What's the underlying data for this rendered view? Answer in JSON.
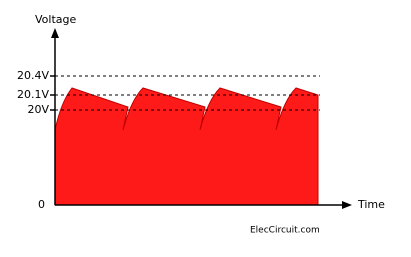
{
  "axis_labels": {
    "y": "Voltage",
    "x": "Time"
  },
  "levels": [
    "20.4V",
    "20.1V",
    "20V",
    "0"
  ],
  "watermark": "ElecCircuit.com"
}
